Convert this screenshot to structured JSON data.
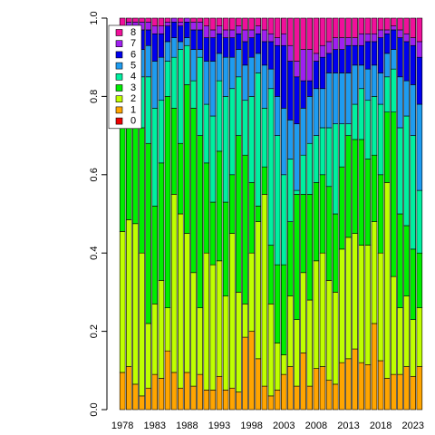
{
  "chart_data": {
    "type": "stacked_bar",
    "categories": [
      "1978",
      null,
      null,
      null,
      null,
      "1983",
      null,
      null,
      null,
      null,
      "1988",
      null,
      null,
      null,
      null,
      "1993",
      null,
      null,
      null,
      null,
      "1998",
      null,
      null,
      null,
      null,
      "2003",
      null,
      null,
      null,
      null,
      "2008",
      null,
      null,
      null,
      null,
      "2013",
      null,
      null,
      null,
      null,
      "2018",
      null,
      null,
      null,
      null,
      "2023",
      null
    ],
    "series": [
      {
        "name": "0",
        "color": "#ee0000",
        "values": [
          0,
          0,
          0,
          0,
          0,
          0,
          0,
          0,
          0,
          0,
          0,
          0,
          0,
          0,
          0,
          0,
          0,
          0,
          0,
          0,
          0,
          0,
          0,
          0,
          0,
          0,
          0,
          0,
          0,
          0,
          0,
          0,
          0,
          0,
          0,
          0,
          0,
          0,
          0,
          0,
          0,
          0,
          0,
          0,
          0,
          0,
          0
        ]
      },
      {
        "name": "1",
        "color": "#ffa500",
        "values": [
          0.095,
          0.11,
          0.065,
          0.035,
          0.055,
          0.09,
          0.08,
          0.15,
          0.095,
          0.055,
          0.095,
          0.06,
          0.09,
          0.05,
          0.05,
          0.085,
          0.05,
          0.055,
          0.045,
          0.185,
          0.2,
          0.13,
          0.06,
          0.035,
          0.05,
          0.09,
          0.11,
          0.06,
          0.145,
          0.06,
          0.105,
          0.11,
          0.075,
          0.065,
          0.12,
          0.13,
          0.155,
          0.12,
          0.115,
          0.22,
          0.125,
          0.08,
          0.09,
          0.09,
          0.11,
          0.085,
          0.11
        ]
      },
      {
        "name": "2",
        "color": "#bfff00",
        "values": [
          0.36,
          0.375,
          0.41,
          0.365,
          0.165,
          0.18,
          0.25,
          0.11,
          0.455,
          0.445,
          0.355,
          0.29,
          0.17,
          0.35,
          0.32,
          0.295,
          0.24,
          0.395,
          0.255,
          0.085,
          0.2,
          0.35,
          0.49,
          0.235,
          0.12,
          0.05,
          0.18,
          0.17,
          0.205,
          0.22,
          0.275,
          0.29,
          0.255,
          0.235,
          0.29,
          0.31,
          0.295,
          0.3,
          0.305,
          0.26,
          0.275,
          0.5,
          0.25,
          0.17,
          0.18,
          0.145,
          0.15
        ]
      },
      {
        "name": "3",
        "color": "#00ee00",
        "values": [
          0.265,
          0.275,
          0.275,
          0.32,
          0.46,
          0.25,
          0.3,
          0.54,
          0.22,
          0.18,
          0.38,
          0.42,
          0.44,
          0.23,
          0.16,
          0.28,
          0.24,
          0.15,
          0.4,
          0.38,
          0.18,
          0.04,
          0.07,
          0.15,
          0.2,
          0.23,
          0.19,
          0.32,
          0.2,
          0.27,
          0.2,
          0.2,
          0.24,
          0.2,
          0.21,
          0.26,
          0.24,
          0.27,
          0.22,
          0.17,
          0.2,
          0.18,
          0.42,
          0.24,
          0.18,
          0.18,
          0.14
        ]
      },
      {
        "name": "4",
        "color": "#00f0a0",
        "values": [
          0.11,
          0.11,
          0.11,
          0.13,
          0.17,
          0.25,
          0.16,
          0.09,
          0.13,
          0.24,
          0.1,
          0.07,
          0.2,
          0.15,
          0.22,
          0.18,
          0.27,
          0.22,
          0.15,
          0.14,
          0.22,
          0.34,
          0.15,
          0.4,
          0.33,
          0.23,
          0.16,
          0.01,
          0.1,
          0.13,
          0.12,
          0.12,
          0.15,
          0.23,
          0.11,
          0.03,
          0.09,
          0.13,
          0.15,
          0.15,
          0.18,
          0.09,
          0.11,
          0.22,
          0.28,
          0.29,
          0.16
        ]
      },
      {
        "name": "5",
        "color": "#1e9cf0",
        "values": [
          0.09,
          0.06,
          0.08,
          0.07,
          0.08,
          0.12,
          0.11,
          0.05,
          0.05,
          0.02,
          0.02,
          0.08,
          0.02,
          0.11,
          0.14,
          0.07,
          0.1,
          0.08,
          0.07,
          0.09,
          0.1,
          0.05,
          0.11,
          0.05,
          0.1,
          0.17,
          0.1,
          0.17,
          0.12,
          0.12,
          0.12,
          0.1,
          0.14,
          0.13,
          0.13,
          0.13,
          0.1,
          0.06,
          0.08,
          0.08,
          0.08,
          0.06,
          0.05,
          0.13,
          0.09,
          0.13,
          0.22
        ]
      },
      {
        "name": "6",
        "color": "#0000ee",
        "values": [
          0.04,
          0.04,
          0.04,
          0.05,
          0.04,
          0.07,
          0.06,
          0.04,
          0.04,
          0.04,
          0.04,
          0.05,
          0.05,
          0.06,
          0.06,
          0.05,
          0.05,
          0.05,
          0.04,
          0.06,
          0.05,
          0.05,
          0.06,
          0.07,
          0.13,
          0.16,
          0.15,
          0.12,
          0.07,
          0.04,
          0.07,
          0.08,
          0.05,
          0.06,
          0.06,
          0.07,
          0.05,
          0.05,
          0.07,
          0.06,
          0.09,
          0.05,
          0.05,
          0.1,
          0.1,
          0.1,
          0.12
        ]
      },
      {
        "name": "7",
        "color": "#a020f0",
        "values": [
          0.02,
          0.02,
          0.01,
          0.02,
          0.02,
          0.02,
          0.02,
          0.01,
          0.01,
          0.01,
          0.01,
          0.02,
          0.02,
          0.03,
          0.02,
          0.02,
          0.02,
          0.02,
          0.02,
          0.03,
          0.02,
          0.02,
          0.03,
          0.02,
          0.02,
          0.03,
          0.04,
          0.04,
          0.08,
          0.08,
          0.02,
          0.03,
          0.03,
          0.03,
          0.03,
          0.02,
          0.02,
          0.03,
          0.02,
          0.02,
          0.02,
          0.01,
          0.01,
          0.02,
          0.02,
          0.02,
          0.04
        ]
      },
      {
        "name": "8",
        "color": "#f0109a",
        "values": [
          0.02,
          0.01,
          0.01,
          0.01,
          0.01,
          0.02,
          0.02,
          0.01,
          0,
          0.01,
          0,
          0.01,
          0.01,
          0.02,
          0.03,
          0.02,
          0.03,
          0.03,
          0.02,
          0.03,
          0.03,
          0.02,
          0.03,
          0.04,
          0.05,
          0.04,
          0.07,
          0.11,
          0.08,
          0.08,
          0.09,
          0.07,
          0.06,
          0.05,
          0.05,
          0.05,
          0.05,
          0.04,
          0.04,
          0.04,
          0.03,
          0.03,
          0.02,
          0.03,
          0.04,
          0.05,
          0.06
        ]
      }
    ],
    "ylim": [
      0,
      1
    ],
    "yticks": [
      {
        "value": 0,
        "label": "0.0"
      },
      0.2,
      0.4,
      0.6,
      0.8,
      {
        "value": 1,
        "label": "1.0"
      }
    ],
    "legend": "top-left"
  }
}
